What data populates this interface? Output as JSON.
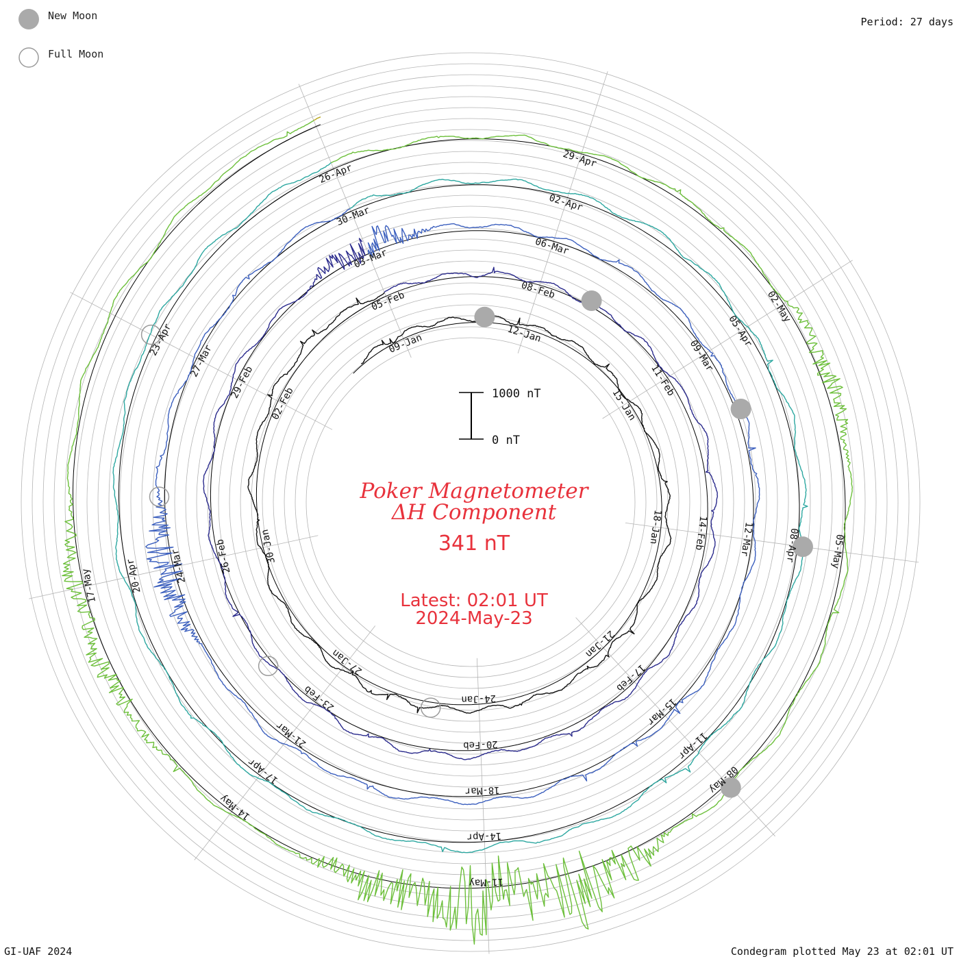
{
  "legend": {
    "new_moon_label": "New Moon",
    "full_moon_label": "Full Moon"
  },
  "period_label": "Period: 27 days",
  "credit": "GI-UAF 2024",
  "plotted_label": "Condegram plotted May 23 at 02:01 UT",
  "colors": {
    "title": "#e8323c",
    "grid": "#b4b4b4",
    "baseline": "#000000",
    "new_moon": "#aaaaaa",
    "full_moon": "#9a9a9a",
    "revolutions": [
      "#111111",
      "#2a2a8c",
      "#3b5fbe",
      "#2ca7a0",
      "#6cbf3a",
      "#b8a61c",
      "#c07a14",
      "#c4261a"
    ]
  },
  "chart_data": {
    "type": "condegram",
    "title": "Poker Magnetometer",
    "subtitle": "ΔH Component",
    "current_value": "341 nT",
    "latest_time": "Latest: 02:01 UT",
    "latest_date": "2024-May-23",
    "period_days": 27,
    "scale": {
      "top_label": "1000 nT",
      "bottom_label": "0 nT",
      "range_nT": [
        0,
        1000
      ]
    },
    "date_labels": [
      "09-Jan",
      "12-Jan",
      "15-Jan",
      "18-Jan",
      "21-Jan",
      "24-Jan",
      "27-Jan",
      "30-Jan",
      "02-Feb",
      "05-Feb",
      "08-Feb",
      "11-Feb",
      "14-Feb",
      "17-Feb",
      "20-Feb",
      "23-Feb",
      "26-Feb",
      "29-Feb",
      "03-Mar",
      "06-Mar",
      "09-Mar",
      "12-Mar",
      "15-Mar",
      "18-Mar",
      "21-Mar",
      "24-Mar",
      "27-Mar",
      "30-Mar",
      "02-Apr",
      "05-Apr",
      "08-Apr",
      "11-Apr",
      "14-Apr",
      "17-Apr",
      "20-Apr",
      "23-Apr",
      "26-Apr",
      "29-Apr",
      "02-May",
      "05-May",
      "08-May",
      "11-May",
      "14-May",
      "17-May"
    ],
    "new_moons": [
      "11-Jan",
      "09-Feb",
      "10-Mar",
      "08-Apr",
      "08-May"
    ],
    "full_moons": [
      "25-Jan",
      "24-Feb",
      "25-Mar",
      "23-Apr"
    ],
    "disturbances_nT": [
      {
        "date": "03-Mar",
        "value": 700
      },
      {
        "date": "24-Mar",
        "value": 900
      },
      {
        "date": "03-May",
        "value": 450
      },
      {
        "date": "10-May",
        "value": 1900
      },
      {
        "date": "11-May",
        "value": 2200
      },
      {
        "date": "12-May",
        "value": 1000
      },
      {
        "date": "16-May",
        "value": 500
      },
      {
        "date": "17-May",
        "value": 450
      }
    ]
  }
}
